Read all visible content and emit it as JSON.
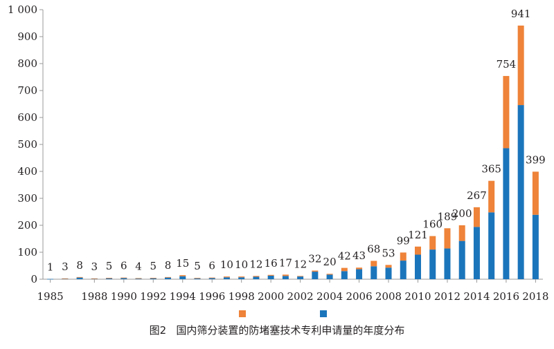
{
  "caption": {
    "fig_no": "图2",
    "title": "国内筛分装置的防堵塞技术专利申请量的年度分布"
  },
  "colors": {
    "series_a": "#ee8339",
    "series_b": "#1b75bb",
    "axis": "#999999"
  },
  "chart_data": {
    "type": "bar",
    "stacked": true,
    "ylim": [
      0,
      1000
    ],
    "yticks": [
      0,
      100,
      200,
      300,
      400,
      500,
      600,
      700,
      800,
      900,
      1000
    ],
    "ytick_labels": [
      "0",
      "100",
      "200",
      "300",
      "400",
      "500",
      "600",
      "700",
      "800",
      "900",
      "1 000"
    ],
    "categories": [
      "1985",
      "1986",
      "1987",
      "1988",
      "1989",
      "1990",
      "1991",
      "1992",
      "1993",
      "1994",
      "1995",
      "1996",
      "1997",
      "1998",
      "1999",
      "2000",
      "2001",
      "2002",
      "2003",
      "2004",
      "2005",
      "2006",
      "2007",
      "2008",
      "2009",
      "2010",
      "2011",
      "2012",
      "2013",
      "2014",
      "2015",
      "2016",
      "2017",
      "2018"
    ],
    "xtick_labels": [
      "1985",
      "1988",
      "1990",
      "1992",
      "1994",
      "1996",
      "1998",
      "2000",
      "2002",
      "2004",
      "2006",
      "2008",
      "2010",
      "2012",
      "2014",
      "2016",
      "2018"
    ],
    "xtick_indices": [
      0,
      3,
      5,
      7,
      9,
      11,
      13,
      15,
      17,
      19,
      21,
      23,
      25,
      27,
      29,
      31,
      33
    ],
    "totals": [
      1,
      3,
      8,
      3,
      5,
      6,
      4,
      5,
      8,
      15,
      5,
      6,
      10,
      10,
      12,
      16,
      17,
      12,
      32,
      20,
      42,
      43,
      68,
      53,
      99,
      121,
      160,
      189,
      200,
      267,
      365,
      754,
      941,
      399
    ],
    "series": [
      {
        "values": [
          0,
          1,
          2,
          1,
          1,
          2,
          1,
          1,
          2,
          4,
          2,
          2,
          3,
          3,
          3,
          3,
          5,
          2,
          4,
          3,
          12,
          6,
          20,
          10,
          30,
          30,
          50,
          75,
          58,
          73,
          117,
          268,
          295,
          160
        ]
      },
      {
        "values": [
          1,
          2,
          6,
          2,
          4,
          4,
          3,
          4,
          6,
          11,
          3,
          4,
          7,
          7,
          9,
          13,
          12,
          10,
          28,
          17,
          30,
          37,
          48,
          43,
          69,
          91,
          110,
          114,
          142,
          194,
          248,
          486,
          646,
          239
        ]
      }
    ],
    "legend_position": "bottom"
  }
}
